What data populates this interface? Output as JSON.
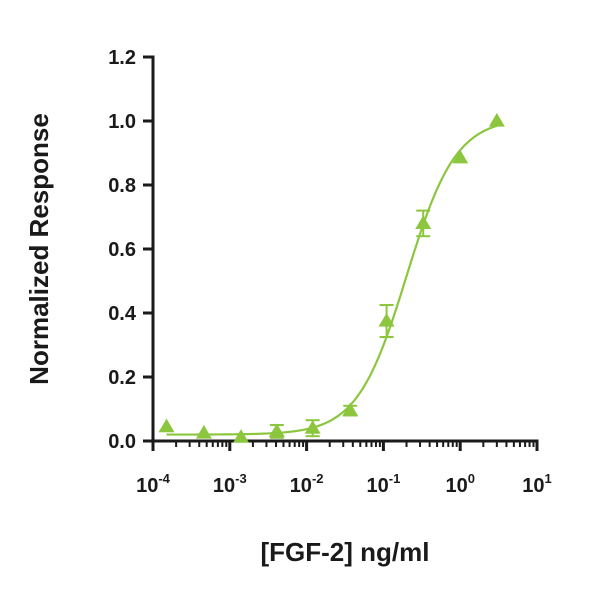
{
  "chart_data": {
    "type": "scatter",
    "xlabel": "[FGF-2] ng/ml",
    "ylabel": "Normalized Response",
    "x_scale": "log",
    "xlim": [
      0.0001,
      10
    ],
    "ylim": [
      0,
      1.2
    ],
    "x_ticks": [
      {
        "base": "10",
        "exp": "-4",
        "value": 0.0001
      },
      {
        "base": "10",
        "exp": "-3",
        "value": 0.001
      },
      {
        "base": "10",
        "exp": "-2",
        "value": 0.01
      },
      {
        "base": "10",
        "exp": "-1",
        "value": 0.1
      },
      {
        "base": "10",
        "exp": "0",
        "value": 1
      },
      {
        "base": "10",
        "exp": "1",
        "value": 10
      }
    ],
    "y_ticks": [
      "0.0",
      "0.2",
      "0.4",
      "0.6",
      "0.8",
      "1.0",
      "1.2"
    ],
    "grid": false,
    "legend": "none",
    "color": "#8cc63f",
    "series": [
      {
        "marker": "triangle",
        "points": [
          {
            "x": 0.00015,
            "y": 0.045,
            "err": 0
          },
          {
            "x": 0.00046,
            "y": 0.025,
            "err": 0
          },
          {
            "x": 0.0014,
            "y": 0.012,
            "err": 0
          },
          {
            "x": 0.0041,
            "y": 0.03,
            "err": 0.02
          },
          {
            "x": 0.012,
            "y": 0.04,
            "err": 0.025
          },
          {
            "x": 0.037,
            "y": 0.095,
            "err": 0.015
          },
          {
            "x": 0.11,
            "y": 0.375,
            "err": 0.05
          },
          {
            "x": 0.33,
            "y": 0.68,
            "err": 0.04
          },
          {
            "x": 1.0,
            "y": 0.885,
            "err": 0
          },
          {
            "x": 3.0,
            "y": 1.0,
            "err": 0
          }
        ]
      }
    ],
    "fit": {
      "bottom": 0.02,
      "top": 1.01,
      "ec50": 0.2,
      "hill": 1.35,
      "x_start": 0.00015,
      "x_end": 3.0
    }
  }
}
